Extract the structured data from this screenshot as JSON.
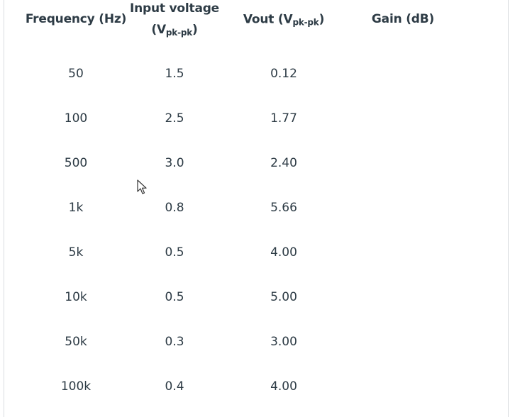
{
  "table": {
    "headers": {
      "frequency": "Frequency (Hz)",
      "input_voltage_line1": "Input voltage",
      "input_voltage_open": "(V",
      "input_voltage_sub": "pk-pk",
      "input_voltage_close": ")",
      "vout_prefix": "Vout (V",
      "vout_sub": "pk-pk",
      "vout_close": ")",
      "gain": "Gain (dB)"
    },
    "rows": [
      {
        "frequency": "50",
        "vin": "1.5",
        "vout": "0.12",
        "gain": ""
      },
      {
        "frequency": "100",
        "vin": "2.5",
        "vout": "1.77",
        "gain": ""
      },
      {
        "frequency": "500",
        "vin": "3.0",
        "vout": "2.40",
        "gain": ""
      },
      {
        "frequency": "1k",
        "vin": "0.8",
        "vout": "5.66",
        "gain": ""
      },
      {
        "frequency": "5k",
        "vin": "0.5",
        "vout": "4.00",
        "gain": ""
      },
      {
        "frequency": "10k",
        "vin": "0.5",
        "vout": "5.00",
        "gain": ""
      },
      {
        "frequency": "50k",
        "vin": "0.3",
        "vout": "3.00",
        "gain": ""
      },
      {
        "frequency": "100k",
        "vin": "0.4",
        "vout": "4.00",
        "gain": ""
      }
    ]
  },
  "icons": {
    "cursor": "mouse-pointer-icon"
  }
}
